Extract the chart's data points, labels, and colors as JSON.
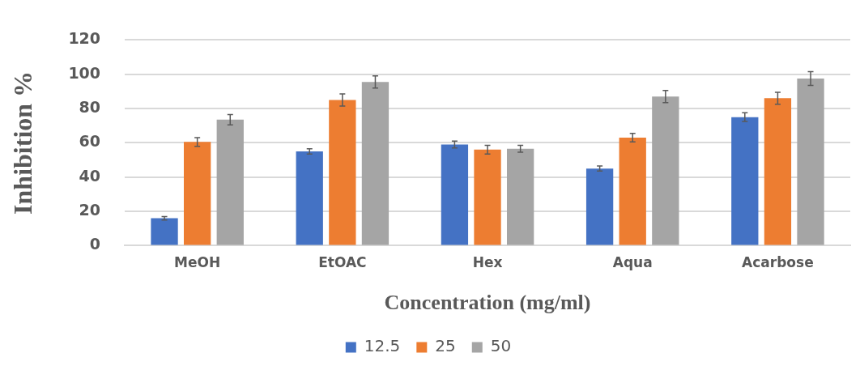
{
  "chart_data": {
    "type": "bar",
    "xlabel": "Concentration (mg/ml)",
    "ylabel": "Inhibition %",
    "categories": [
      "MeOH",
      "EtOAC",
      "Hex",
      "Aqua",
      "Acarbose"
    ],
    "series": [
      {
        "name": "12.5",
        "color": "#4472c4",
        "values": [
          16,
          55,
          59,
          45,
          75
        ],
        "errors": [
          1,
          1.5,
          2,
          1.5,
          2.5
        ]
      },
      {
        "name": "25",
        "color": "#ed7d31",
        "values": [
          60.5,
          85,
          56,
          63,
          86
        ],
        "errors": [
          2.5,
          3.5,
          2.5,
          2.5,
          3.5
        ]
      },
      {
        "name": "50",
        "color": "#a5a5a5",
        "values": [
          73.5,
          95.5,
          56.5,
          87,
          97.5
        ],
        "errors": [
          3,
          3.5,
          2,
          3.5,
          4
        ]
      }
    ],
    "ylim": [
      0,
      120
    ],
    "yticks": [
      0,
      20,
      40,
      60,
      80,
      100,
      120
    ],
    "grid": "y",
    "legend": "bottom"
  }
}
